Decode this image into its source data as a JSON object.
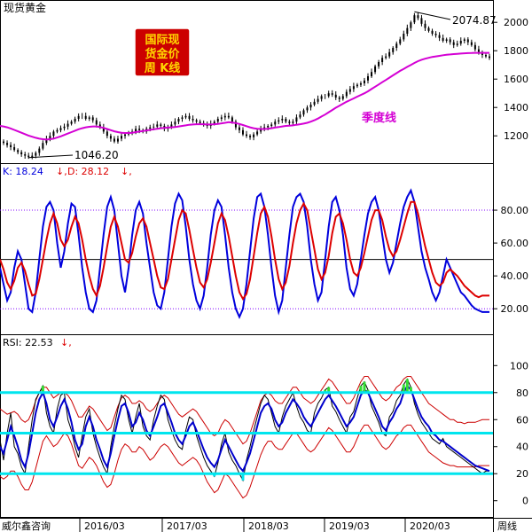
{
  "window": {
    "title": "现货黄金"
  },
  "badge": {
    "line1": "国际现",
    "line2": "货金价",
    "line3": "周 K线"
  },
  "footer": {
    "brand": "威尔鑫咨询",
    "period": "周线"
  },
  "colors": {
    "candle": "#000000",
    "quarter_ma": "#d400d4",
    "k_line": "#0000dd",
    "d_line": "#dd0000",
    "rsi_band": "#00e5ee",
    "rsi_line": "#0000cc",
    "rsi_envelope": "#cc0000",
    "rsi_hot": "#33dd33",
    "guide_purple": "#8000ff",
    "badge_bg": "#cc0000",
    "badge_text": "#ffd700"
  },
  "chart_data": [
    {
      "type": "candlestick",
      "panel": "price",
      "title": "现货黄金",
      "ma_label": "季度线",
      "max_label": "2074.87",
      "min_label": "1046.20",
      "max_value": 2074.87,
      "min_value": 1046.2,
      "ylim": [
        1020,
        2120
      ],
      "yticks": [
        1200,
        1400,
        1600,
        1800,
        2000
      ],
      "x_ticks": [
        "2016/03",
        "2017/03",
        "2018/03",
        "2019/03",
        "2020/03"
      ],
      "close_series": [
        1160,
        1150,
        1135,
        1120,
        1100,
        1085,
        1070,
        1060,
        1050,
        1060,
        1080,
        1110,
        1150,
        1180,
        1200,
        1230,
        1240,
        1255,
        1265,
        1285,
        1300,
        1320,
        1340,
        1340,
        1320,
        1330,
        1310,
        1280,
        1260,
        1230,
        1200,
        1180,
        1160,
        1180,
        1200,
        1210,
        1220,
        1230,
        1250,
        1240,
        1230,
        1250,
        1260,
        1265,
        1280,
        1270,
        1250,
        1260,
        1280,
        1300,
        1320,
        1330,
        1340,
        1320,
        1310,
        1300,
        1290,
        1280,
        1270,
        1285,
        1300,
        1320,
        1330,
        1340,
        1330,
        1300,
        1260,
        1240,
        1210,
        1200,
        1190,
        1210,
        1230,
        1250,
        1260,
        1270,
        1280,
        1300,
        1310,
        1320,
        1300,
        1290,
        1300,
        1330,
        1350,
        1380,
        1400,
        1420,
        1440,
        1460,
        1480,
        1480,
        1500,
        1490,
        1470,
        1460,
        1480,
        1510,
        1530,
        1550,
        1560,
        1570,
        1590,
        1620,
        1650,
        1690,
        1720,
        1750,
        1760,
        1790,
        1820,
        1850,
        1880,
        1920,
        1960,
        2000,
        2050,
        2030,
        1990,
        1960,
        1940,
        1920,
        1910,
        1890,
        1870,
        1880,
        1860,
        1840,
        1850,
        1870,
        1880,
        1860,
        1840,
        1810,
        1790,
        1770,
        1760,
        1750
      ],
      "ma_series": [
        1270,
        1266,
        1260,
        1252,
        1242,
        1232,
        1222,
        1212,
        1202,
        1194,
        1186,
        1180,
        1176,
        1174,
        1176,
        1180,
        1188,
        1196,
        1206,
        1216,
        1226,
        1236,
        1246,
        1254,
        1260,
        1264,
        1266,
        1266,
        1262,
        1256,
        1248,
        1240,
        1232,
        1226,
        1222,
        1220,
        1220,
        1222,
        1226,
        1230,
        1234,
        1238,
        1242,
        1246,
        1250,
        1254,
        1256,
        1258,
        1260,
        1262,
        1266,
        1270,
        1274,
        1278,
        1280,
        1282,
        1282,
        1282,
        1280,
        1280,
        1282,
        1284,
        1288,
        1292,
        1296,
        1294,
        1290,
        1284,
        1276,
        1268,
        1260,
        1254,
        1250,
        1248,
        1248,
        1250,
        1254,
        1258,
        1262,
        1266,
        1270,
        1272,
        1274,
        1278,
        1282,
        1286,
        1292,
        1300,
        1310,
        1322,
        1336,
        1350,
        1366,
        1382,
        1398,
        1412,
        1426,
        1440,
        1452,
        1464,
        1476,
        1488,
        1500,
        1514,
        1530,
        1546,
        1562,
        1578,
        1594,
        1610,
        1626,
        1642,
        1658,
        1672,
        1686,
        1700,
        1714,
        1726,
        1736,
        1744,
        1750,
        1756,
        1760,
        1764,
        1768,
        1772,
        1774,
        1776,
        1778,
        1780,
        1782,
        1783,
        1784,
        1785,
        1785,
        1785,
        1785,
        1785
      ]
    },
    {
      "type": "line",
      "panel": "KD",
      "k_label": "K: 18.24",
      "d_label": "D: 28.12",
      "k_value": 18.24,
      "d_value": 28.12,
      "ylim": [
        5,
        100
      ],
      "yticks": [
        20,
        40,
        60,
        80
      ],
      "reference_lines": [
        20,
        50,
        80
      ],
      "series": [
        {
          "name": "K",
          "values": [
            45,
            35,
            25,
            30,
            45,
            55,
            50,
            35,
            20,
            18,
            30,
            50,
            70,
            82,
            85,
            80,
            60,
            45,
            55,
            72,
            84,
            82,
            65,
            45,
            30,
            20,
            18,
            25,
            45,
            65,
            82,
            88,
            80,
            60,
            40,
            30,
            45,
            65,
            80,
            85,
            78,
            60,
            45,
            30,
            22,
            20,
            30,
            50,
            70,
            84,
            90,
            86,
            70,
            50,
            35,
            25,
            20,
            28,
            45,
            65,
            80,
            86,
            82,
            65,
            45,
            30,
            20,
            15,
            20,
            35,
            55,
            75,
            88,
            90,
            82,
            65,
            45,
            28,
            18,
            25,
            45,
            65,
            82,
            88,
            90,
            85,
            70,
            50,
            35,
            25,
            30,
            50,
            70,
            85,
            88,
            80,
            65,
            45,
            32,
            28,
            35,
            50,
            65,
            78,
            85,
            88,
            80,
            65,
            50,
            42,
            48,
            60,
            72,
            82,
            88,
            92,
            85,
            70,
            55,
            45,
            38,
            30,
            25,
            30,
            40,
            50,
            45,
            40,
            35,
            30,
            28,
            25,
            22,
            20,
            19,
            18,
            18,
            18
          ]
        },
        {
          "name": "D",
          "values": [
            50,
            44,
            36,
            32,
            37,
            45,
            48,
            43,
            35,
            28,
            29,
            38,
            50,
            62,
            72,
            78,
            72,
            62,
            58,
            62,
            70,
            76,
            72,
            62,
            50,
            40,
            32,
            28,
            34,
            45,
            58,
            70,
            76,
            70,
            60,
            50,
            48,
            54,
            64,
            72,
            75,
            70,
            60,
            50,
            40,
            33,
            32,
            38,
            50,
            62,
            74,
            80,
            78,
            68,
            56,
            45,
            36,
            33,
            38,
            48,
            60,
            72,
            78,
            74,
            64,
            52,
            40,
            30,
            26,
            29,
            38,
            52,
            66,
            78,
            82,
            76,
            64,
            50,
            38,
            32,
            36,
            46,
            60,
            72,
            80,
            84,
            80,
            68,
            56,
            44,
            38,
            42,
            52,
            66,
            76,
            78,
            72,
            62,
            50,
            42,
            40,
            45,
            54,
            64,
            74,
            80,
            80,
            74,
            64,
            56,
            52,
            55,
            62,
            70,
            78,
            85,
            85,
            78,
            68,
            58,
            50,
            42,
            36,
            34,
            36,
            42,
            44,
            42,
            40,
            37,
            34,
            32,
            30,
            28,
            27,
            28,
            28,
            28
          ]
        }
      ]
    },
    {
      "type": "line",
      "panel": "RSI",
      "rsi_label": "RSI: 22.53",
      "rsi_value": 22.53,
      "ylim": [
        -12,
        112
      ],
      "yticks": [
        0,
        20,
        40,
        60,
        80,
        100
      ],
      "reference_lines": [
        20,
        50,
        80
      ],
      "series": [
        {
          "name": "RSI",
          "values": [
            40,
            35,
            45,
            55,
            48,
            40,
            30,
            25,
            35,
            50,
            65,
            75,
            80,
            72,
            60,
            55,
            62,
            70,
            75,
            68,
            58,
            45,
            38,
            42,
            55,
            62,
            55,
            45,
            38,
            30,
            25,
            35,
            48,
            60,
            70,
            72,
            65,
            55,
            58,
            65,
            60,
            52,
            48,
            55,
            62,
            70,
            72,
            65,
            58,
            50,
            45,
            42,
            48,
            55,
            58,
            52,
            45,
            38,
            32,
            28,
            25,
            30,
            38,
            45,
            40,
            35,
            30,
            25,
            22,
            28,
            35,
            45,
            55,
            65,
            70,
            72,
            68,
            60,
            55,
            58,
            65,
            70,
            75,
            72,
            68,
            62,
            58,
            55,
            60,
            65,
            70,
            75,
            78,
            74,
            70,
            65,
            60,
            55,
            58,
            62,
            70,
            78,
            82,
            80,
            74,
            68,
            62,
            55,
            52,
            58,
            62,
            68,
            72,
            80,
            85,
            82,
            75,
            68,
            62,
            58,
            55,
            50,
            48,
            45,
            44,
            42,
            40,
            38,
            36,
            34,
            32,
            30,
            28,
            26,
            25,
            24,
            23,
            22
          ]
        },
        {
          "name": "RSI fast",
          "values": [
            45,
            30,
            50,
            65,
            40,
            35,
            25,
            20,
            40,
            60,
            75,
            80,
            85,
            65,
            55,
            50,
            68,
            78,
            80,
            60,
            52,
            40,
            32,
            48,
            62,
            68,
            50,
            40,
            32,
            25,
            20,
            40,
            55,
            68,
            78,
            75,
            60,
            50,
            62,
            72,
            55,
            48,
            45,
            60,
            70,
            78,
            75,
            60,
            52,
            45,
            40,
            38,
            52,
            62,
            60,
            48,
            40,
            32,
            26,
            22,
            18,
            28,
            42,
            50,
            36,
            30,
            26,
            20,
            15,
            30,
            40,
            52,
            62,
            72,
            78,
            75,
            65,
            55,
            50,
            62,
            70,
            75,
            80,
            70,
            62,
            58,
            52,
            50,
            65,
            72,
            76,
            82,
            84,
            70,
            66,
            60,
            55,
            50,
            62,
            66,
            76,
            85,
            88,
            82,
            70,
            64,
            58,
            50,
            48,
            62,
            66,
            74,
            78,
            86,
            90,
            84,
            72,
            64,
            58,
            54,
            50,
            46,
            44,
            42,
            46,
            40,
            38,
            36,
            34,
            32,
            30,
            28,
            26,
            24,
            22,
            20,
            22,
            22
          ]
        },
        {
          "name": "Upper",
          "values": [
            68,
            66,
            64,
            65,
            66,
            64,
            60,
            58,
            60,
            66,
            74,
            80,
            84,
            84,
            80,
            76,
            78,
            80,
            80,
            78,
            74,
            68,
            62,
            62,
            66,
            70,
            68,
            64,
            60,
            56,
            52,
            54,
            62,
            70,
            76,
            78,
            76,
            72,
            72,
            74,
            72,
            68,
            66,
            68,
            72,
            76,
            78,
            76,
            72,
            68,
            64,
            62,
            64,
            66,
            68,
            66,
            62,
            58,
            54,
            50,
            48,
            50,
            56,
            60,
            58,
            54,
            50,
            46,
            42,
            44,
            50,
            58,
            66,
            74,
            78,
            80,
            78,
            74,
            72,
            72,
            76,
            80,
            84,
            84,
            80,
            76,
            74,
            72,
            74,
            78,
            82,
            86,
            90,
            88,
            84,
            80,
            76,
            72,
            72,
            76,
            82,
            88,
            92,
            92,
            88,
            84,
            80,
            76,
            74,
            76,
            80,
            84,
            86,
            90,
            92,
            92,
            88,
            84,
            80,
            76,
            72,
            70,
            68,
            66,
            64,
            62,
            60,
            60,
            58,
            58,
            57,
            58,
            58,
            58,
            59,
            60,
            60,
            60
          ]
        },
        {
          "name": "Lower",
          "values": [
            18,
            16,
            18,
            22,
            22,
            18,
            12,
            8,
            8,
            14,
            24,
            34,
            44,
            48,
            44,
            40,
            42,
            46,
            50,
            48,
            42,
            34,
            26,
            24,
            28,
            32,
            30,
            26,
            20,
            14,
            10,
            12,
            20,
            30,
            38,
            42,
            40,
            36,
            36,
            40,
            38,
            34,
            30,
            32,
            36,
            40,
            42,
            40,
            36,
            32,
            28,
            26,
            28,
            30,
            32,
            30,
            26,
            20,
            14,
            10,
            6,
            8,
            14,
            20,
            18,
            14,
            10,
            6,
            2,
            4,
            10,
            18,
            26,
            34,
            40,
            44,
            44,
            40,
            38,
            38,
            42,
            46,
            50,
            50,
            46,
            42,
            38,
            36,
            38,
            42,
            46,
            50,
            54,
            52,
            48,
            44,
            40,
            36,
            36,
            40,
            46,
            52,
            56,
            56,
            52,
            48,
            44,
            40,
            38,
            40,
            44,
            48,
            50,
            54,
            56,
            56,
            52,
            48,
            44,
            40,
            36,
            34,
            32,
            30,
            28,
            27,
            26,
            26,
            25,
            25,
            25,
            25,
            25,
            25,
            26,
            26,
            26,
            26
          ]
        }
      ]
    }
  ]
}
